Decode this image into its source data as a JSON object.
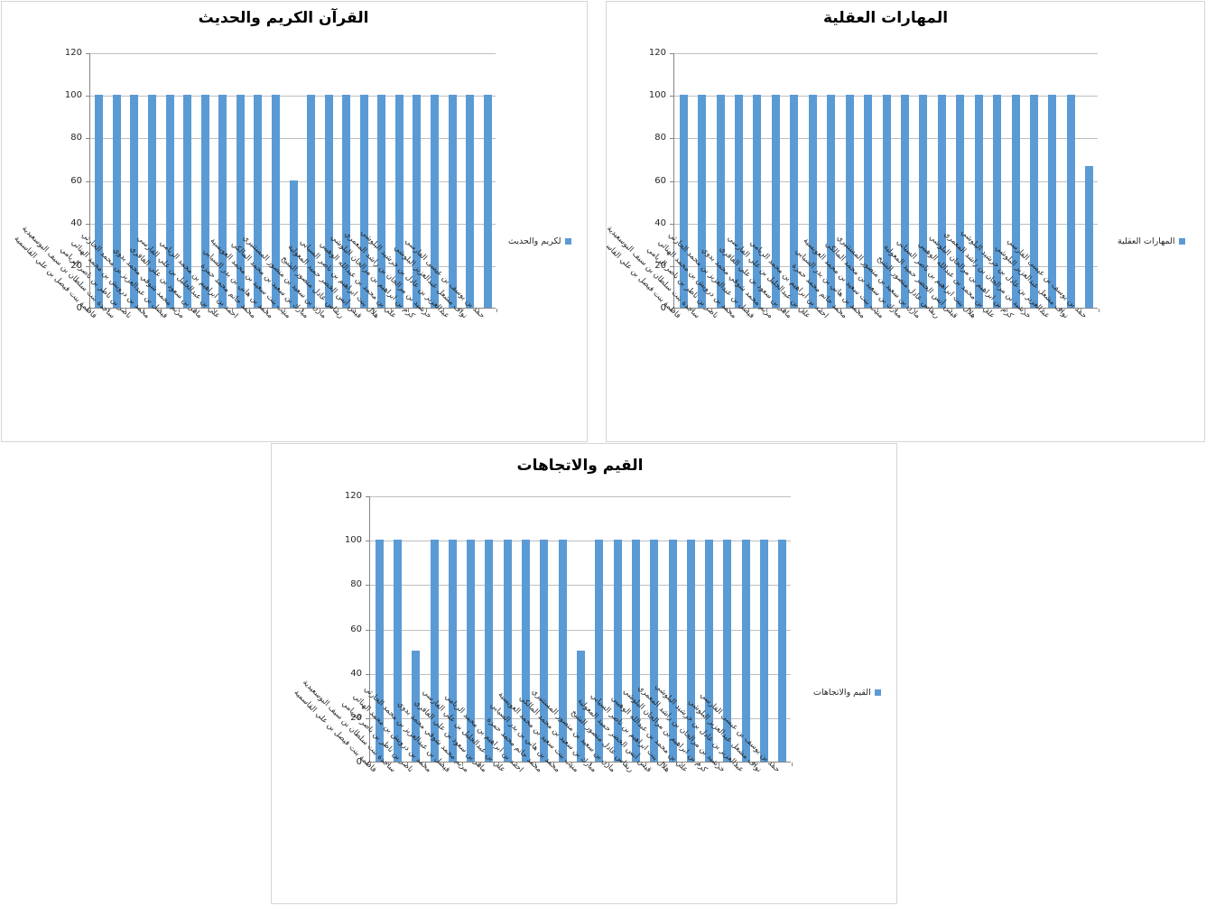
{
  "colors": {
    "bar": "#5b9bd5",
    "gridline": "#bfbfbf",
    "axis": "#868686",
    "title_text": "#000000",
    "tick_text": "#262626",
    "chart_border": "#d5d5d5"
  },
  "y_axis": {
    "ticks": [
      120,
      100,
      80,
      60,
      40,
      20,
      0
    ],
    "min": 0,
    "max": 120
  },
  "chart_data": [
    {
      "id": "quran",
      "type": "bar",
      "title": "القرآن الكريم والحديث",
      "legend": "لكريم والحديث",
      "ylim": [
        0,
        120
      ],
      "yticks": [
        0,
        20,
        40,
        60,
        80,
        100,
        120
      ],
      "grid": true,
      "legend_position": "right",
      "categories": [
        "فاطمة بنت فيصل بن علي القاسمية",
        "ساجدة بنت سلطان بن سيف البوسعيدية",
        "ناصر بن ناظر بن ناصر الريامي",
        "محمد بن درويش بن محمد الهنائي",
        "فيصل بن عبدالعزيز بن محمد الحارثي",
        "مريم محمد شوقي محمد بدوي",
        "ماهر بن سعود بن علي الغافري",
        "علي بن عبدالجليل بن علي الفارسي",
        "احمد بن ابراهيم بن محمد الريامي",
        "محمد حاتم محمد حمزة",
        "محمد بن هاني بن بدر السيابي",
        "منيب بنت سعيد بن محمد العويسية",
        "مبارك بن سعيد بن محمد المالكي",
        "مازن بن سعيد بن منصور المستنيري",
        "ريماس عادل منصور الشيخ",
        "قيس أنس الخضر حميد المعولية",
        "هلال بنت ابراهيم بن ناصر السيابي",
        "علي بن محمد بن عبدالله الوهيبي",
        "كرم بن ابراهيم بن مرالجان البلوشي",
        "خرشيد بن مرالجان بن راشد المعمري",
        "عبدالعزيز بن عادل بن خرشيد البلوشي",
        "نواف مشعل عبدالعزيز البلوشي",
        "حمد بن يوسف بن عيسى الفارسي"
      ],
      "values": [
        100,
        100,
        100,
        100,
        100,
        100,
        100,
        100,
        100,
        100,
        100,
        60,
        100,
        100,
        100,
        100,
        100,
        100,
        100,
        100,
        100,
        100,
        100
      ]
    },
    {
      "id": "mental",
      "type": "bar",
      "title": "المهارات العقلية",
      "legend": "المهارات العقلية",
      "ylim": [
        0,
        120
      ],
      "yticks": [
        0,
        20,
        40,
        60,
        80,
        100,
        120
      ],
      "grid": true,
      "legend_position": "right",
      "categories": [
        "فاطمة بنت فيصل بن علي القاسمية",
        "ساجدة بنت سلطان بن سيف البوسعيدية",
        "ناصر بن ناظر بن ناصر الريامي",
        "محمد بن درويش بن محمد الهنائي",
        "فيصل بن عبدالعزيز بن محمد الحارثي",
        "مريم محمد شوقي محمد بدوي",
        "ماهر بن سعود بن علي الغافري",
        "علي بن عبدالجليل بن علي الفارسي",
        "احمد بن ابراهيم بن محمد الريامي",
        "محمد حاتم محمد حمزة",
        "محمد بن هاني بن بدر السيابي",
        "منيب بنت سعيد بن محمد العويسية",
        "مبارك بن سعيد بن محمد المالكي",
        "مازن بن سعيد بن منصور المستنيري",
        "ريماس عادل منصور الشيخ",
        "قيس أنس الخضر حميد المعولية",
        "هلال بنت ابراهيم بن ناصر السيابي",
        "علي بن محمد بن عبدالله الوهيبي",
        "كرم بن ابراهيم بن مرالجان البلوشي",
        "خرشيد بن مرالجان بن راشد المعمري",
        "عبدالعزيز بن عادل بن خرشيد البلوشي",
        "نواف مشعل عبدالعزيز البلوشي",
        "حمد بن يوسف بن عيسى الفارسي"
      ],
      "values": [
        100,
        100,
        100,
        100,
        100,
        100,
        100,
        100,
        100,
        100,
        100,
        100,
        100,
        100,
        100,
        100,
        100,
        100,
        100,
        100,
        100,
        100,
        66.7
      ]
    },
    {
      "id": "values",
      "type": "bar",
      "title": "القيم والاتجاهات",
      "legend": "القيم والاتجاهات",
      "ylim": [
        0,
        120
      ],
      "yticks": [
        0,
        20,
        40,
        60,
        80,
        100,
        120
      ],
      "grid": true,
      "legend_position": "right",
      "categories": [
        "فاطمة بنت فيصل بن علي القاسمية",
        "ساجدة بنت سلطان بن سيف البوسعيدية",
        "ناصر بن ناظر بن ناصر الريامي",
        "محمد بن درويش بن محمد الهنائي",
        "فيصل بن عبدالعزيز بن محمد الحارثي",
        "مريم محمد شوقي محمد بدوي",
        "ماهر بن سعود بن علي الغافري",
        "علي بن عبدالجليل بن علي الفارسي",
        "احمد بن ابراهيم بن محمد الريامي",
        "محمد حاتم محمد حمزة",
        "محمد بن هاني بن بدر السيابي",
        "منيب بنت سعيد بن محمد العويسية",
        "مبارك بن سعيد بن محمد المالكي",
        "مازن بن سعيد بن منصور المستنيري",
        "ريماس عادل منصور الشيخ",
        "قيس أنس الخضر حميد المعولية",
        "هلال بنت ابراهيم بن ناصر السيابي",
        "علي بن محمد بن عبدالله الوهيبي",
        "كرم بن ابراهيم بن مرالجان البلوشي",
        "خرشيد بن مرالجان بن راشد المعمري",
        "عبدالعزيز بن عادل بن خرشيد البلوشي",
        "نواف مشعل عبدالعزيز البلوشي",
        "حمد بن يوسف بن عيسى الفارسي"
      ],
      "values": [
        100,
        100,
        50,
        100,
        100,
        100,
        100,
        100,
        100,
        100,
        100,
        50,
        100,
        100,
        100,
        100,
        100,
        100,
        100,
        100,
        100,
        100,
        100
      ]
    }
  ]
}
